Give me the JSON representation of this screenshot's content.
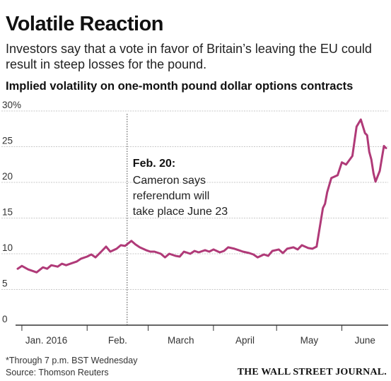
{
  "header": {
    "title": "Volatile Reaction",
    "dek": "Investors say that a vote in favor of Britain’s leaving the EU could result in steep losses for the pound.",
    "chart_subtitle": "Implied volatility on one-month pound dollar options contracts"
  },
  "footer": {
    "footnote": "*Through 7 p.m. BST Wednesday",
    "source": "Source: Thomson Reuters",
    "logo": "THE WALL STREET JOURNAL."
  },
  "colors": {
    "series": "#b03a78",
    "gridline": "#c8c8c8",
    "axis": "#333333",
    "annotation_rule": "#444444"
  },
  "chart_data": {
    "type": "line",
    "title": "Implied volatility on one-month pound dollar options contracts",
    "xlabel": "",
    "ylabel": "",
    "ylim": [
      0,
      30
    ],
    "y_ticks": [
      0,
      5,
      10,
      15,
      20,
      25,
      30
    ],
    "y_tick_labels": [
      "0",
      "5",
      "10",
      "15",
      "20",
      "25",
      "30%"
    ],
    "x_range": [
      "2016-01-01",
      "2016-06-23"
    ],
    "x_ticks": [
      "2016-01-01",
      "2016-02-01",
      "2016-03-01",
      "2016-04-01",
      "2016-05-01",
      "2016-06-01"
    ],
    "x_tick_labels": [
      "Jan. 2016",
      "Feb.",
      "March",
      "April",
      "May",
      "June"
    ],
    "grid": "horizontal",
    "legend": "none",
    "annotations": [
      {
        "date": "2016-02-20",
        "title": "Feb. 20:",
        "lines": [
          "Cameron says",
          "referendum will",
          "take place June 23"
        ]
      }
    ],
    "series": [
      {
        "x": [
          "2015-12-30",
          "2016-01-01",
          "2016-01-04",
          "2016-01-06",
          "2016-01-08",
          "2016-01-11",
          "2016-01-13",
          "2016-01-15",
          "2016-01-18",
          "2016-01-20",
          "2016-01-22",
          "2016-01-25",
          "2016-01-27",
          "2016-01-29",
          "2016-02-01",
          "2016-02-03",
          "2016-02-05",
          "2016-02-08",
          "2016-02-10",
          "2016-02-12",
          "2016-02-15",
          "2016-02-17",
          "2016-02-19",
          "2016-02-22",
          "2016-02-24",
          "2016-02-26",
          "2016-02-29",
          "2016-03-02",
          "2016-03-04",
          "2016-03-07",
          "2016-03-09",
          "2016-03-11",
          "2016-03-14",
          "2016-03-16",
          "2016-03-18",
          "2016-03-21",
          "2016-03-23",
          "2016-03-25",
          "2016-03-28",
          "2016-03-30",
          "2016-04-01",
          "2016-04-04",
          "2016-04-06",
          "2016-04-08",
          "2016-04-11",
          "2016-04-13",
          "2016-04-15",
          "2016-04-18",
          "2016-04-20",
          "2016-04-22",
          "2016-04-25",
          "2016-04-27",
          "2016-04-29",
          "2016-05-02",
          "2016-05-04",
          "2016-05-06",
          "2016-05-09",
          "2016-05-11",
          "2016-05-13",
          "2016-05-16",
          "2016-05-18",
          "2016-05-20",
          "2016-05-23",
          "2016-05-24",
          "2016-05-25",
          "2016-05-27",
          "2016-05-30",
          "2016-06-01",
          "2016-06-03",
          "2016-06-06",
          "2016-06-08",
          "2016-06-10",
          "2016-06-12",
          "2016-06-13",
          "2016-06-14",
          "2016-06-15",
          "2016-06-16",
          "2016-06-17",
          "2016-06-19",
          "2016-06-20",
          "2016-06-21",
          "2016-06-22"
        ],
        "values": [
          7.9,
          8.3,
          7.8,
          7.6,
          7.4,
          8.1,
          7.9,
          8.4,
          8.2,
          8.6,
          8.4,
          8.7,
          8.9,
          9.3,
          9.6,
          9.9,
          9.5,
          10.4,
          11.0,
          10.3,
          10.7,
          11.2,
          11.1,
          11.8,
          11.3,
          10.9,
          10.5,
          10.3,
          10.3,
          10.0,
          9.5,
          10.0,
          9.7,
          9.6,
          10.3,
          10.0,
          10.4,
          10.2,
          10.5,
          10.3,
          10.6,
          10.2,
          10.4,
          10.9,
          10.7,
          10.5,
          10.3,
          10.1,
          9.9,
          9.5,
          9.9,
          9.7,
          10.4,
          10.6,
          10.1,
          10.7,
          10.9,
          10.6,
          11.2,
          10.8,
          10.7,
          11.0,
          16.4,
          17.0,
          18.6,
          20.6,
          21.0,
          22.8,
          22.5,
          23.7,
          27.8,
          28.8,
          26.9,
          26.6,
          24.3,
          23.2,
          21.3,
          20.1,
          21.6,
          23.4,
          25.1,
          24.8
        ]
      }
    ]
  }
}
